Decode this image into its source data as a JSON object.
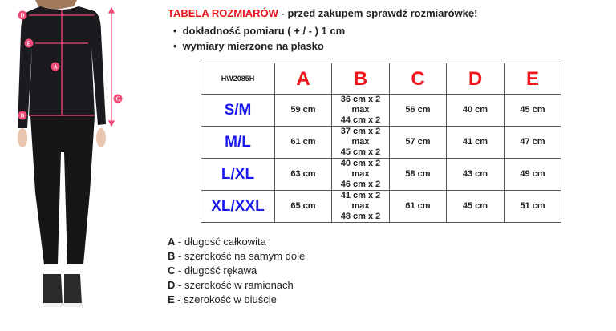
{
  "header": {
    "title_highlight": "TABELA ROZMIARÓW",
    "title_rest": " - przed zakupem sprawdź rozmiarówkę!",
    "bullets": [
      "dokładność pomiaru ( + / - ) 1 cm",
      "wymiary mierzone na płasko"
    ]
  },
  "table": {
    "code": "HW2085H",
    "columns": [
      "A",
      "B",
      "C",
      "D",
      "E"
    ],
    "rows": [
      {
        "size": "S/M",
        "a": "59 cm",
        "b": [
          "36 cm x 2",
          "max",
          "44 cm x 2"
        ],
        "c": "56 cm",
        "d": "40 cm",
        "e": "45 cm"
      },
      {
        "size": "M/L",
        "a": "61 cm",
        "b": [
          "37 cm x 2",
          "max",
          "45 cm x 2"
        ],
        "c": "57 cm",
        "d": "41 cm",
        "e": "47 cm"
      },
      {
        "size": "L/XL",
        "a": "63 cm",
        "b": [
          "40 cm x 2",
          "max",
          "46 cm x 2"
        ],
        "c": "58 cm",
        "d": "43 cm",
        "e": "49 cm"
      },
      {
        "size": "XL/XXL",
        "a": "65 cm",
        "b": [
          "41 cm x 2",
          "max",
          "48 cm x 2"
        ],
        "c": "61 cm",
        "d": "45 cm",
        "e": "51 cm"
      }
    ]
  },
  "legend": [
    {
      "key": "A",
      "text": " - długość całkowita"
    },
    {
      "key": "B",
      "text": " - szerokość na samym dole"
    },
    {
      "key": "C",
      "text": " - długość rękawa"
    },
    {
      "key": "D",
      "text": " - szerokość w ramionach"
    },
    {
      "key": "E",
      "text": " - szerokość w biuście"
    }
  ],
  "figure": {
    "markers": [
      "A",
      "B",
      "C",
      "D",
      "E"
    ]
  },
  "colors": {
    "accent_red": "#e8141c",
    "size_blue": "#1a1aee",
    "measure_pink": "#f04a78"
  }
}
